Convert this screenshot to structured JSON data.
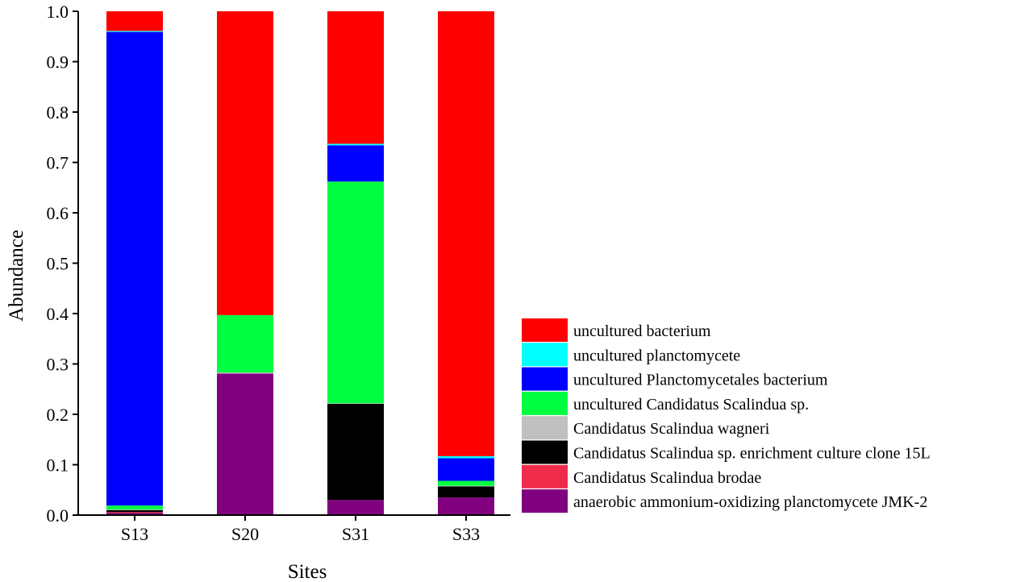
{
  "chart_data": {
    "type": "bar",
    "stacked": true,
    "xlabel": "Sites",
    "ylabel": "Abundance",
    "ylim": [
      0,
      1.0
    ],
    "yticks": [
      "0.0",
      "0.1",
      "0.2",
      "0.3",
      "0.4",
      "0.5",
      "0.6",
      "0.7",
      "0.8",
      "0.9",
      "1.0"
    ],
    "categories": [
      "S13",
      "S20",
      "S31",
      "S33"
    ],
    "legend_position": "bottom-right",
    "series": [
      {
        "name": "anaerobic ammonium-oxidizing planctomycete JMK-2",
        "color": "#800080",
        "values": [
          0.004,
          0.281,
          0.03,
          0.035
        ]
      },
      {
        "name": "Candidatus Scalindua brodae",
        "color": "#ee2b4b",
        "values": [
          0.002,
          0.0,
          0.0,
          0.0
        ]
      },
      {
        "name": "Candidatus Scalindua sp. enrichment culture clone 15L",
        "color": "#000000",
        "values": [
          0.004,
          0.0,
          0.191,
          0.022
        ]
      },
      {
        "name": "Candidatus Scalindua wagneri",
        "color": "#c0c0c0",
        "values": [
          0.001,
          0.002,
          0.001,
          0.001
        ]
      },
      {
        "name": "uncultured Candidatus Scalindua sp.",
        "color": "#00ff40",
        "values": [
          0.008,
          0.114,
          0.44,
          0.01
        ]
      },
      {
        "name": "uncultured Planctomycetales bacterium",
        "color": "#0000ff",
        "values": [
          0.94,
          0.0,
          0.072,
          0.045
        ]
      },
      {
        "name": "uncultured planctomycete",
        "color": "#00ffff",
        "values": [
          0.002,
          0.0,
          0.003,
          0.004
        ]
      },
      {
        "name": "uncultured bacterium",
        "color": "#ff0000",
        "values": [
          0.039,
          0.603,
          0.263,
          0.883
        ]
      }
    ]
  }
}
